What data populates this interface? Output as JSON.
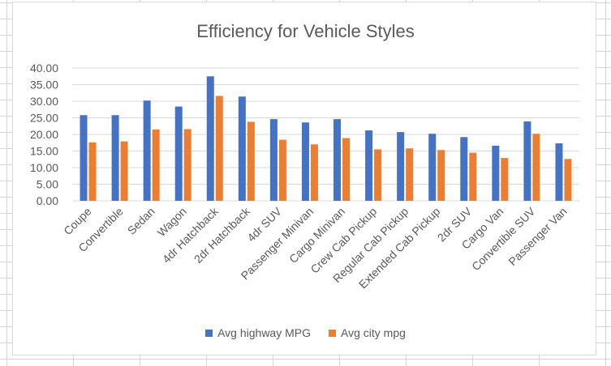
{
  "chart_data": {
    "type": "bar",
    "title": "Efficiency for Vehicle Styles",
    "xlabel": "",
    "ylabel": "",
    "categories": [
      "Coupe",
      "Convertible",
      "Sedan",
      "Wagon",
      "4dr Hatchback",
      "2dr Hatchback",
      "4dr SUV",
      "Passenger Minivan",
      "Cargo Minivan",
      "Crew Cab Pickup",
      "Regular Cab Pickup",
      "Extended Cab Pickup",
      "2dr SUV",
      "Cargo Van",
      "Convertible SUV",
      "Passenger Van"
    ],
    "series": [
      {
        "name": "Avg highway MPG",
        "color": "#4472c4",
        "values": [
          25.8,
          25.8,
          30.2,
          28.4,
          37.5,
          31.4,
          24.6,
          23.6,
          24.6,
          21.2,
          20.7,
          20.2,
          19.2,
          16.6,
          23.9,
          17.3
        ]
      },
      {
        "name": "Avg city mpg",
        "color": "#ed7d31",
        "values": [
          17.6,
          17.9,
          21.5,
          21.6,
          31.6,
          23.8,
          18.4,
          17.0,
          18.9,
          15.5,
          15.8,
          15.3,
          14.5,
          12.9,
          20.2,
          12.6
        ]
      }
    ],
    "ylim": [
      0,
      40
    ],
    "yticks": [
      "0.00",
      "5.00",
      "10.00",
      "15.00",
      "20.00",
      "25.00",
      "30.00",
      "35.00",
      "40.00"
    ],
    "grid": true,
    "legend_position": "bottom"
  }
}
